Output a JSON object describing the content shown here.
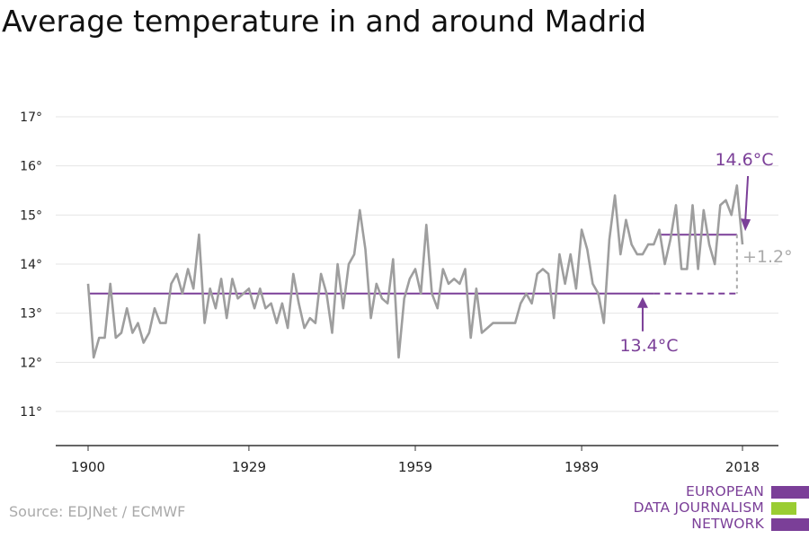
{
  "title": "Average temperature in and around Madrid",
  "source": "Source: EDJNet / ECMWF",
  "logo": {
    "line1": "EUROPEAN",
    "line2": "DATA JOURNALISM",
    "line3": "NETWORK",
    "colors": [
      "#7b3f98",
      "#9acd32",
      "#7b3f98"
    ]
  },
  "colors": {
    "series": "#9e9e9e",
    "accent": "#7b3f98",
    "delta": "#aaaaaa",
    "grid": "#e4e4e4",
    "axis": "#333333"
  },
  "chart_data": {
    "type": "line",
    "title": "Average temperature in and around Madrid",
    "xlabel": "",
    "ylabel": "",
    "xlim": [
      1900,
      2018
    ],
    "ylim": [
      11,
      17
    ],
    "grid": true,
    "x_ticks": [
      1900,
      1929,
      1959,
      1989,
      2018
    ],
    "x_tick_labels": [
      "1900",
      "1929",
      "1959",
      "1989",
      "2018"
    ],
    "y_ticks": [
      11,
      12,
      13,
      14,
      15,
      16,
      17
    ],
    "y_tick_labels": [
      "11°",
      "12°",
      "13°",
      "14°",
      "15°",
      "16°",
      "17°"
    ],
    "series": [
      {
        "x": [
          1900,
          1901,
          1902,
          1903,
          1904,
          1905,
          1906,
          1907,
          1908,
          1909,
          1910,
          1911,
          1912,
          1913,
          1914,
          1915,
          1916,
          1917,
          1918,
          1919,
          1920,
          1921,
          1922,
          1923,
          1924,
          1925,
          1926,
          1927,
          1928,
          1929,
          1930,
          1931,
          1932,
          1933,
          1934,
          1935,
          1936,
          1937,
          1938,
          1939,
          1940,
          1941,
          1942,
          1943,
          1944,
          1945,
          1946,
          1947,
          1948,
          1949,
          1950,
          1951,
          1952,
          1953,
          1954,
          1955,
          1956,
          1957,
          1958,
          1959,
          1960,
          1961,
          1962,
          1963,
          1964,
          1965,
          1966,
          1967,
          1968,
          1969,
          1970,
          1971,
          1972,
          1973,
          1974,
          1975,
          1976,
          1977,
          1978,
          1979,
          1980,
          1981,
          1982,
          1983,
          1984,
          1985,
          1986,
          1987,
          1988,
          1989,
          1990,
          1991,
          1992,
          1993,
          1994,
          1995,
          1996,
          1997,
          1998,
          1999,
          2000,
          2001,
          2002,
          2003,
          2004,
          2005,
          2006,
          2007,
          2008,
          2009,
          2010,
          2011,
          2012,
          2013,
          2014,
          2015,
          2016,
          2017,
          2018
        ],
        "values": [
          13.6,
          12.1,
          12.5,
          12.5,
          13.6,
          12.5,
          12.6,
          13.1,
          12.6,
          12.8,
          12.4,
          12.6,
          13.1,
          12.8,
          12.8,
          13.6,
          13.8,
          13.4,
          13.9,
          13.5,
          14.6,
          12.8,
          13.5,
          13.1,
          13.7,
          12.9,
          13.7,
          13.3,
          13.4,
          13.5,
          13.1,
          13.5,
          13.1,
          13.2,
          12.8,
          13.2,
          12.7,
          13.8,
          13.2,
          12.7,
          12.9,
          12.8,
          13.8,
          13.4,
          12.6,
          14.0,
          13.1,
          14.0,
          14.2,
          15.1,
          14.3,
          12.9,
          13.6,
          13.3,
          13.2,
          14.1,
          12.1,
          13.3,
          13.7,
          13.9,
          13.4,
          14.8,
          13.4,
          13.1,
          13.9,
          13.6,
          13.7,
          13.6,
          13.9,
          12.5,
          13.5,
          12.6,
          12.7,
          12.8,
          12.8,
          12.8,
          12.8,
          12.8,
          13.2,
          13.4,
          13.2,
          13.8,
          13.9,
          13.8,
          12.9,
          14.2,
          13.6,
          14.2,
          13.5,
          14.7,
          14.3,
          13.6,
          13.4,
          12.8,
          14.5,
          15.4,
          14.2,
          14.9,
          14.4,
          14.2,
          14.2,
          14.4,
          14.4,
          14.7,
          14.0,
          14.5,
          15.2,
          13.9,
          13.9,
          15.2,
          13.9,
          15.1,
          14.4,
          14.0,
          15.2,
          15.3,
          15.0,
          15.6,
          14.4
        ]
      }
    ],
    "reference_lines": [
      {
        "from": 1900,
        "to": 2002,
        "value": 13.4,
        "style": "solid"
      },
      {
        "from": 2002,
        "to": 2017,
        "value": 13.4,
        "style": "dashed"
      },
      {
        "from": 2003,
        "to": 2017,
        "value": 14.6,
        "style": "solid"
      }
    ],
    "annotations": {
      "baseline_label": "13.4°C",
      "recent_label": "14.6°C",
      "delta_label": "+1.2°"
    }
  }
}
